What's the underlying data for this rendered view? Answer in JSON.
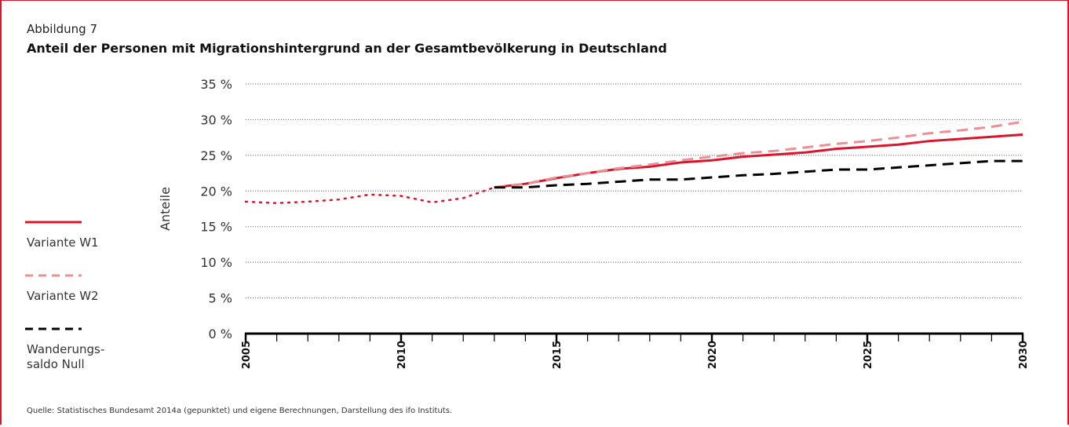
{
  "chart_data": {
    "type": "line",
    "kicker": "Abbildung 7",
    "title": "Anteil der Personen mit Migrationshintergrund an der Gesamtbevölkerung in Deutschland",
    "ylabel": "Anteile",
    "source": "Quelle: Statistisches Bundesamt 2014a (gepunktet) und eigene Berechnungen, Darstellung des ifo Instituts.",
    "x": [
      2005,
      2006,
      2007,
      2008,
      2009,
      2010,
      2011,
      2012,
      2013,
      2014,
      2015,
      2016,
      2017,
      2018,
      2019,
      2020,
      2021,
      2022,
      2023,
      2024,
      2025,
      2026,
      2027,
      2028,
      2029,
      2030
    ],
    "series": [
      {
        "color": "#d9142b",
        "style": "dotted",
        "values": [
          18.5,
          18.3,
          18.5,
          18.8,
          19.5,
          19.3,
          18.4,
          19.0,
          20.5,
          null,
          null,
          null,
          null,
          null,
          null,
          null,
          null,
          null,
          null,
          null,
          null,
          null,
          null,
          null,
          null,
          null
        ]
      },
      {
        "name": "Variante W1",
        "color": "#d9142b",
        "style": "solid",
        "values": [
          null,
          null,
          null,
          null,
          null,
          null,
          null,
          null,
          20.5,
          21.0,
          21.8,
          22.5,
          23.1,
          23.4,
          24.0,
          24.3,
          24.8,
          25.1,
          25.4,
          25.9,
          26.2,
          26.5,
          27.0,
          27.3,
          27.6,
          27.9
        ]
      },
      {
        "name": "Variante W2",
        "color": "#ee8f96",
        "style": "dashed",
        "values": [
          null,
          null,
          null,
          null,
          null,
          null,
          null,
          null,
          20.5,
          21.0,
          21.9,
          22.5,
          23.2,
          23.7,
          24.3,
          24.8,
          25.3,
          25.6,
          26.1,
          26.6,
          27.0,
          27.5,
          28.1,
          28.5,
          29.0,
          29.7
        ]
      },
      {
        "name": "Wanderungs-\nsaldo Null",
        "color": "#000000",
        "style": "dashed",
        "values": [
          null,
          null,
          null,
          null,
          null,
          null,
          null,
          null,
          20.5,
          20.5,
          20.8,
          21.0,
          21.3,
          21.6,
          21.6,
          21.9,
          22.2,
          22.4,
          22.7,
          23.0,
          23.0,
          23.3,
          23.6,
          23.9,
          24.2,
          24.2
        ]
      }
    ],
    "xlim": [
      2005,
      2030
    ],
    "xticks": [
      2005,
      2010,
      2015,
      2020,
      2025,
      2030
    ],
    "ylim": [
      0,
      35
    ],
    "yticks": [
      {
        "value": 0,
        "label": "0 %"
      },
      {
        "value": 5,
        "label": "5 %"
      },
      {
        "value": 10,
        "label": "10 %"
      },
      {
        "value": 15,
        "label": "15 %"
      },
      {
        "value": 20,
        "label": "20 %"
      },
      {
        "value": 25,
        "label": "25 %"
      },
      {
        "value": 30,
        "label": "30 %"
      },
      {
        "value": 35,
        "label": "35 %"
      }
    ],
    "grid": true
  }
}
